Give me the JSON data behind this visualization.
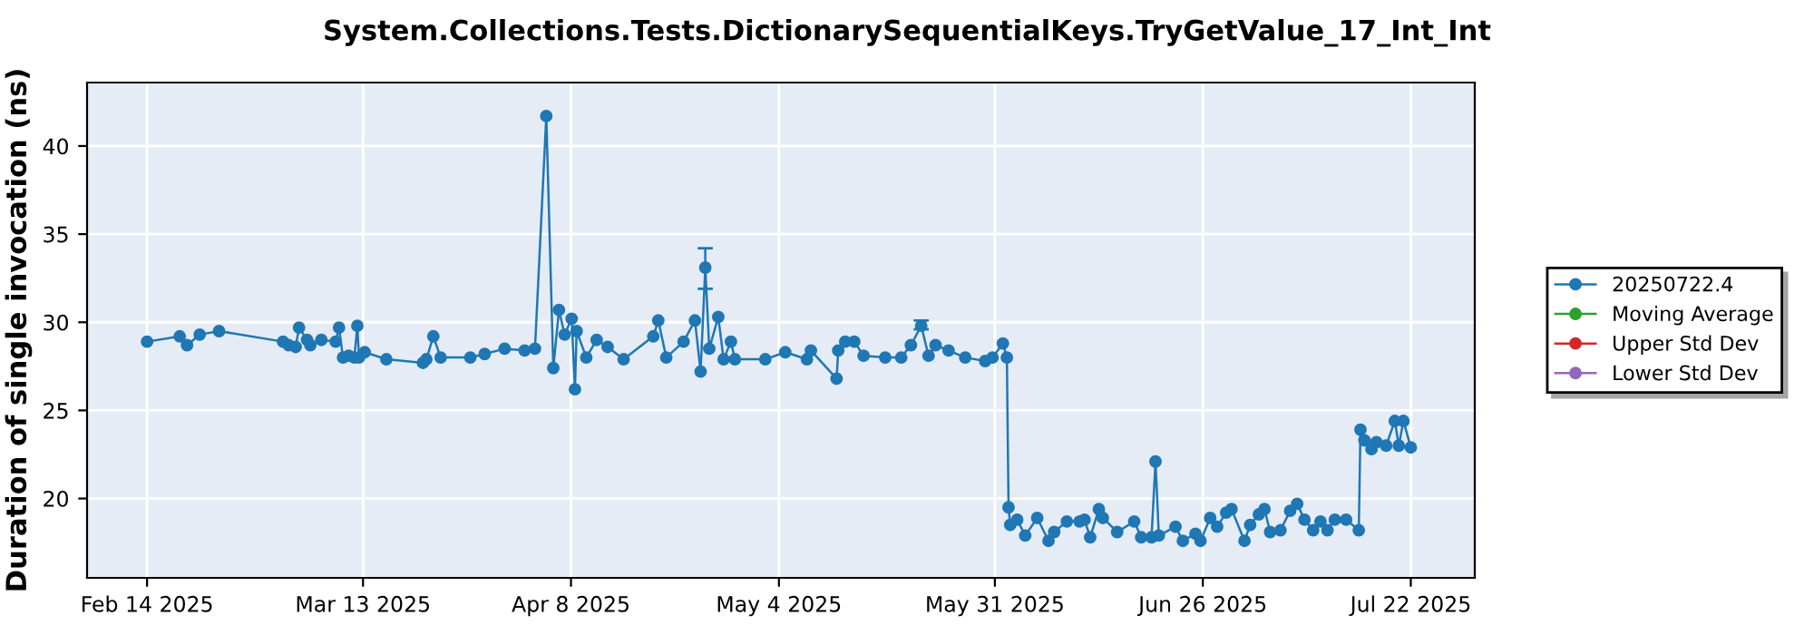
{
  "chart_data": {
    "type": "line",
    "title": "System.Collections.Tests.DictionarySequentialKeys.TryGetValue_17_Int_Int",
    "ylabel": "Duration of single invocation (ns)",
    "xlim": [
      "2025-02-06T12:00",
      "2025-07-30T00:00"
    ],
    "ylim": [
      15.5,
      43.6
    ],
    "xticks": [
      {
        "value": "2025-02-14",
        "label": "Feb 14 2025"
      },
      {
        "value": "2025-03-13",
        "label": "Mar 13 2025"
      },
      {
        "value": "2025-04-08",
        "label": "Apr 8 2025"
      },
      {
        "value": "2025-05-04",
        "label": "May 4 2025"
      },
      {
        "value": "2025-05-31",
        "label": "May 31 2025"
      },
      {
        "value": "2025-06-26",
        "label": "Jun 26 2025"
      },
      {
        "value": "2025-07-22",
        "label": "Jul 22 2025"
      }
    ],
    "yticks": [
      20,
      25,
      30,
      35,
      40
    ],
    "grid": true,
    "legend": "right",
    "marker": "circle",
    "line_style": "solid",
    "series": [
      {
        "name": "20250722.4",
        "color": "#1f77b4",
        "x": [
          "2025-02-14T00:00",
          "2025-02-18T02:00",
          "2025-02-19T00:00",
          "2025-02-20T14:00",
          "2025-02-23T00:00",
          "2025-03-03T00:00",
          "2025-03-03T17:00",
          "2025-03-04T14:00",
          "2025-03-05T00:00",
          "2025-03-06T00:00",
          "2025-03-06T10:00",
          "2025-03-07T19:00",
          "2025-03-09T14:00",
          "2025-03-10T00:00",
          "2025-03-10T12:00",
          "2025-03-11T05:00",
          "2025-03-11T22:00",
          "2025-03-12T07:00",
          "2025-03-12T12:00",
          "2025-03-13T05:00",
          "2025-03-15T22:00",
          "2025-03-20T12:00",
          "2025-03-20T22:00",
          "2025-03-21T19:00",
          "2025-03-22T17:00",
          "2025-03-26T10:00",
          "2025-03-28T05:00",
          "2025-03-30T17:00",
          "2025-04-02T05:00",
          "2025-04-03T12:00",
          "2025-04-04T22:00",
          "2025-04-05T19:00",
          "2025-04-06T12:00",
          "2025-04-07T05:00",
          "2025-04-08T02:00",
          "2025-04-08T12:00",
          "2025-04-08T17:00",
          "2025-04-09T22:00",
          "2025-04-11T05:00",
          "2025-04-12T14:00",
          "2025-04-14T14:00",
          "2025-04-18T07:00",
          "2025-04-18T22:00",
          "2025-04-19T22:00",
          "2025-04-22T02:00",
          "2025-04-23T12:00",
          "2025-04-24T05:00",
          "2025-04-24T19:00",
          "2025-04-25T07:00",
          "2025-04-26T10:00",
          "2025-04-27T02:00",
          "2025-04-28T00:00",
          "2025-04-28T12:00",
          "2025-05-02T07:00",
          "2025-05-04T19:00",
          "2025-05-07T12:00",
          "2025-05-08T00:00",
          "2025-05-11T05:00",
          "2025-05-11T10:00",
          "2025-05-12T07:00",
          "2025-05-13T10:00",
          "2025-05-14T14:00",
          "2025-05-17T07:00",
          "2025-05-19T07:00",
          "2025-05-20T12:00",
          "2025-05-21T19:00",
          "2025-05-22T17:00",
          "2025-05-23T14:00",
          "2025-05-25T05:00",
          "2025-05-27T07:00",
          "2025-05-29T19:00",
          "2025-05-30T17:00",
          "2025-06-01T00:00",
          "2025-06-01T12:00",
          "2025-06-01T17:00",
          "2025-06-01T22:00",
          "2025-06-02T19:00",
          "2025-06-03T19:00",
          "2025-06-05T07:00",
          "2025-06-06T17:00",
          "2025-06-07T10:00",
          "2025-06-09T00:00",
          "2025-06-10T14:00",
          "2025-06-11T05:00",
          "2025-06-11T22:00",
          "2025-06-13T00:00",
          "2025-06-13T12:00",
          "2025-06-15T07:00",
          "2025-06-17T10:00",
          "2025-06-18T07:00",
          "2025-06-19T14:00",
          "2025-06-20T02:00",
          "2025-06-20T12:00",
          "2025-06-22T14:00",
          "2025-06-23T12:00",
          "2025-06-25T02:00",
          "2025-06-25T17:00",
          "2025-06-26T22:00",
          "2025-06-27T19:00",
          "2025-06-28T22:00",
          "2025-06-29T14:00",
          "2025-07-01T05:00",
          "2025-07-01T22:00",
          "2025-07-03T00:00",
          "2025-07-03T17:00",
          "2025-07-04T10:00",
          "2025-07-05T17:00",
          "2025-07-06T22:00",
          "2025-07-07T19:00",
          "2025-07-08T17:00",
          "2025-07-09T19:00",
          "2025-07-10T17:00",
          "2025-07-11T14:00",
          "2025-07-12T12:00",
          "2025-07-13T22:00",
          "2025-07-15T12:00",
          "2025-07-15T17:00",
          "2025-07-16T05:00",
          "2025-07-17T02:00",
          "2025-07-17T17:00",
          "2025-07-18T22:00",
          "2025-07-20T00:00",
          "2025-07-20T12:00",
          "2025-07-21T02:00",
          "2025-07-22T00:00"
        ],
        "values": [
          28.9,
          29.2,
          28.7,
          29.3,
          29.5,
          28.9,
          28.7,
          28.6,
          29.7,
          29.0,
          28.7,
          29.0,
          28.9,
          29.7,
          28.0,
          28.1,
          28.0,
          29.8,
          28.0,
          28.3,
          27.9,
          27.7,
          27.9,
          29.2,
          28.0,
          28.0,
          28.2,
          28.5,
          28.4,
          28.5,
          41.7,
          27.4,
          30.7,
          29.3,
          30.2,
          26.2,
          29.5,
          28.0,
          29.0,
          28.6,
          27.9,
          29.2,
          30.1,
          28.0,
          28.9,
          30.1,
          27.2,
          33.1,
          28.5,
          30.3,
          27.9,
          28.9,
          27.9,
          27.9,
          28.3,
          27.9,
          28.4,
          26.8,
          28.4,
          28.9,
          28.9,
          28.1,
          28.0,
          28.0,
          28.7,
          29.8,
          28.1,
          28.7,
          28.4,
          28.0,
          27.8,
          28.0,
          28.8,
          28.0,
          19.5,
          18.5,
          18.8,
          17.9,
          18.9,
          17.6,
          18.1,
          18.7,
          18.7,
          18.8,
          17.8,
          19.4,
          18.9,
          18.1,
          18.7,
          17.8,
          17.8,
          22.1,
          17.9,
          18.4,
          17.6,
          18.0,
          17.6,
          18.9,
          18.4,
          19.2,
          19.4,
          17.6,
          18.5,
          19.1,
          19.4,
          18.1,
          18.2,
          19.3,
          19.7,
          18.8,
          18.2,
          18.7,
          18.2,
          18.8,
          18.8,
          18.2,
          23.9,
          23.3,
          22.8,
          23.2,
          23.0,
          24.4,
          23.0,
          24.4,
          22.9
        ],
        "errors": [
          null,
          null,
          null,
          null,
          null,
          null,
          null,
          null,
          null,
          null,
          null,
          null,
          null,
          null,
          null,
          null,
          null,
          null,
          null,
          null,
          null,
          null,
          null,
          null,
          null,
          null,
          null,
          null,
          null,
          null,
          null,
          null,
          null,
          null,
          null,
          null,
          null,
          null,
          null,
          null,
          null,
          null,
          null,
          null,
          null,
          null,
          null,
          [
            31.9,
            34.2
          ],
          null,
          null,
          null,
          null,
          null,
          null,
          null,
          null,
          null,
          null,
          null,
          null,
          null,
          null,
          null,
          null,
          null,
          [
            29.6,
            30.1
          ],
          null,
          null,
          null,
          null,
          null,
          null,
          null,
          null,
          null,
          null,
          null,
          null,
          null,
          null,
          null,
          null,
          null,
          null,
          null,
          null,
          null,
          null,
          null,
          null,
          null,
          null,
          null,
          null,
          null,
          null,
          null,
          null,
          null,
          null,
          null,
          null,
          null,
          null,
          null,
          null,
          null,
          null,
          null,
          null,
          null,
          null,
          null,
          null,
          null,
          null,
          null,
          null,
          null,
          null,
          null,
          null,
          null,
          null,
          null
        ]
      },
      {
        "name": "Moving Average",
        "color": "#2ca02c"
      },
      {
        "name": "Upper Std Dev",
        "color": "#d62728"
      },
      {
        "name": "Lower Std Dev",
        "color": "#9467bd"
      }
    ]
  }
}
